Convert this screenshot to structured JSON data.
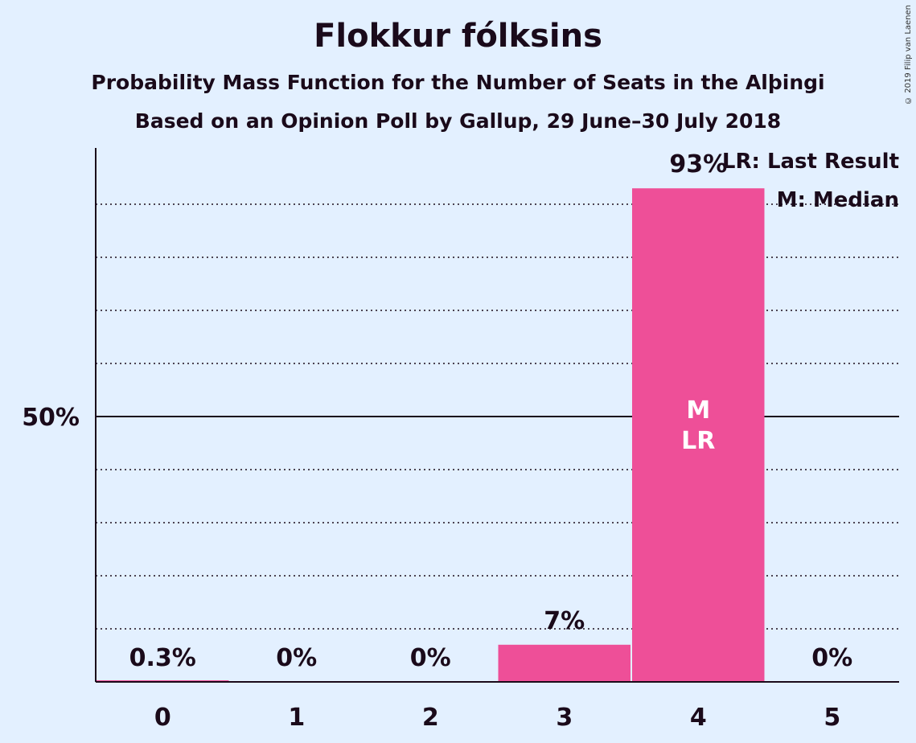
{
  "title": "Flokkur fólksins",
  "subtitle": "Probability Mass Function for the Number of Seats in the Alþingi",
  "subtitle2": "Based on an Opinion Poll by Gallup, 29 June–30 July 2018",
  "copyright": "© 2019 Filip van Laenen",
  "legend": {
    "lr": "LR: Last Result",
    "m": "M: Median"
  },
  "colors": {
    "bar": "#ee4f98",
    "background": "#e3f0ff",
    "axis": "#1a0a1a"
  },
  "chart_data": {
    "type": "bar",
    "categories": [
      "0",
      "1",
      "2",
      "3",
      "4",
      "5"
    ],
    "values": [
      0.3,
      0,
      0,
      7,
      93,
      0
    ],
    "value_labels": [
      "0.3%",
      "0%",
      "0%",
      "7%",
      "93%",
      "0%"
    ],
    "ylim": [
      0,
      100
    ],
    "yticks": [
      {
        "value": 50,
        "label": "50%"
      }
    ],
    "grid": "dotted every 10%",
    "median_seat": "4",
    "last_result_seat": "4",
    "bar_marks": {
      "4": [
        "M",
        "LR"
      ]
    },
    "legend_position": "top-right"
  }
}
